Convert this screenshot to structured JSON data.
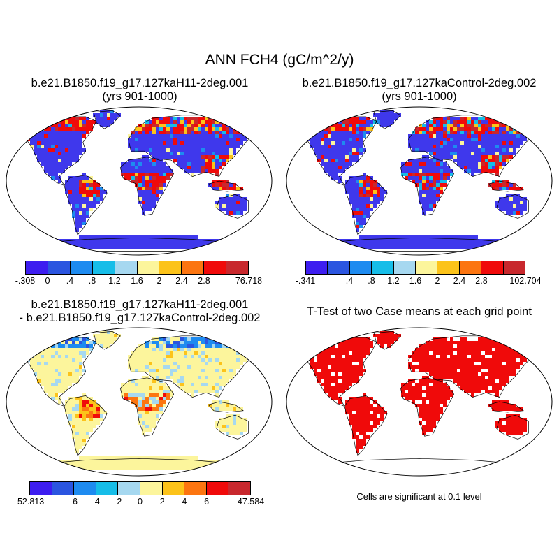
{
  "main_title": "ANN FCH4 (gC/m^2/y)",
  "panels": [
    {
      "title_line1": "b.e21.B1850.f19_g17.127kaH11-2deg.001",
      "title_line2": "(yrs 901-1000)"
    },
    {
      "title_line1": "b.e21.B1850.f19_g17.127kaControl-2deg.002",
      "title_line2": "(yrs 901-1000)"
    },
    {
      "title_line1": "b.e21.B1850.f19_g17.127kaH11-2deg.001",
      "title_line2": "- b.e21.B1850.f19_g17.127kaControl-2deg.002"
    },
    {
      "title_line1": "T-Test of two Case means at each grid point"
    }
  ],
  "significance_note": "Cells are significant at 0.1 level",
  "colors": {
    "palette": [
      "#3d1df0",
      "#2b55e0",
      "#1e8bf0",
      "#16bde8",
      "#a6d8f0",
      "#fcf59c",
      "#fcc31a",
      "#fc7510",
      "#f00a0a",
      "#c8282d"
    ],
    "land_base_abs": "#3f38ec",
    "land_base_diff": "#fcf59c",
    "significant": "#f00a0a",
    "coast": "#000000"
  },
  "chart_data": [
    {
      "type": "heatmap",
      "title": "b.e21.B1850.f19_g17.127kaH11-2deg.001 (yrs 901-1000)",
      "projection": "robinson",
      "colorbar_labels": [
        "-.308",
        "0",
        ".4",
        ".8",
        "1.2",
        "1.6",
        "2",
        "2.4",
        "2.8",
        "76.718"
      ],
      "data_min": -0.308,
      "data_max": 76.718,
      "contour_levels": [
        0,
        0.4,
        0.8,
        1.2,
        1.6,
        2,
        2.4,
        2.8
      ]
    },
    {
      "type": "heatmap",
      "title": "b.e21.B1850.f19_g17.127kaControl-2deg.002 (yrs 901-1000)",
      "projection": "robinson",
      "colorbar_labels": [
        "-.341",
        ".4",
        ".8",
        "1.2",
        "1.6",
        "2",
        "2.4",
        "2.8",
        "102.704"
      ],
      "data_min": -0.341,
      "data_max": 102.704,
      "contour_levels": [
        0,
        0.4,
        0.8,
        1.2,
        1.6,
        2,
        2.4,
        2.8
      ]
    },
    {
      "type": "heatmap",
      "title": "b.e21.B1850.f19_g17.127kaH11-2deg.001 - b.e21.B1850.f19_g17.127kaControl-2deg.002",
      "projection": "robinson",
      "colorbar_labels": [
        "-52.813",
        "-6",
        "-4",
        "-2",
        "0",
        "2",
        "4",
        "6",
        "47.584"
      ],
      "data_min": -52.813,
      "data_max": 47.584,
      "contour_levels": [
        -8,
        -6,
        -4,
        -2,
        0,
        2,
        4,
        6,
        8
      ]
    },
    {
      "type": "heatmap",
      "title": "T-Test of two Case means at each grid point",
      "projection": "robinson",
      "significance_level": 0.1
    }
  ]
}
